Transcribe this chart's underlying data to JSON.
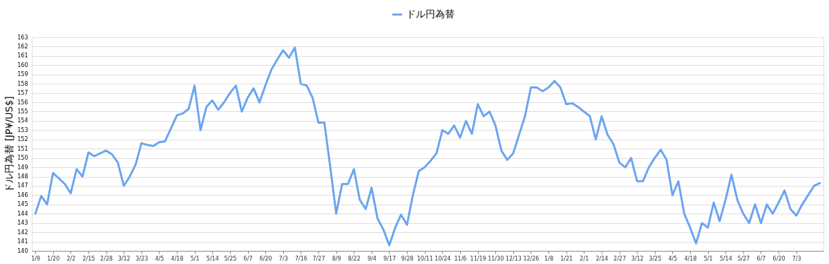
{
  "chart_data": {
    "type": "line",
    "ylabel": "ドル円為替 [JP¥/US$]",
    "categories": [
      "1/9",
      null,
      null,
      "1/20",
      null,
      null,
      "2/2",
      null,
      null,
      "2/15",
      null,
      null,
      "2/28",
      null,
      null,
      "3/12",
      null,
      null,
      "3/23",
      null,
      null,
      "4/5",
      null,
      null,
      "4/18",
      null,
      null,
      "5/1",
      null,
      null,
      "5/14",
      null,
      null,
      "5/25",
      null,
      null,
      "6/7",
      null,
      null,
      "6/20",
      null,
      null,
      "7/3",
      null,
      null,
      "7/16",
      null,
      null,
      "7/27",
      null,
      null,
      "8/9",
      null,
      null,
      "8/22",
      null,
      null,
      "9/4",
      null,
      null,
      "9/17",
      null,
      null,
      "9/28",
      null,
      null,
      "10/11",
      null,
      null,
      "10/24",
      null,
      null,
      "11/6",
      null,
      null,
      "11/19",
      null,
      null,
      "11/30",
      null,
      null,
      "12/13",
      null,
      null,
      "12/26",
      null,
      null,
      "1/8",
      null,
      null,
      "1/21",
      null,
      null,
      "2/1",
      null,
      null,
      "2/14",
      null,
      null,
      "2/27",
      null,
      null,
      "3/12",
      null,
      null,
      "3/25",
      null,
      null,
      "4/5",
      null,
      null,
      "4/18",
      null,
      null,
      "5/1",
      null,
      null,
      "5/14",
      null,
      null,
      "5/27",
      null,
      null,
      "6/7",
      null,
      null,
      "6/20",
      null,
      null,
      "7/3",
      null,
      null,
      null,
      null
    ],
    "series": [
      {
        "name": "ドル円為替",
        "color": "#6aa5f0",
        "values": [
          144.0,
          145.9,
          145.0,
          148.4,
          147.8,
          147.2,
          146.2,
          148.8,
          148.0,
          150.6,
          150.2,
          150.5,
          150.8,
          150.4,
          149.5,
          147.0,
          148.0,
          149.3,
          151.6,
          151.4,
          151.3,
          151.7,
          151.8,
          153.2,
          154.6,
          154.8,
          155.3,
          157.8,
          153.0,
          155.5,
          156.2,
          155.2,
          156.0,
          157.0,
          157.8,
          155.0,
          156.5,
          157.5,
          156.0,
          157.8,
          159.5,
          160.6,
          161.6,
          160.8,
          161.9,
          158.0,
          157.8,
          156.5,
          153.8,
          153.8,
          149.0,
          144.0,
          147.2,
          147.2,
          148.8,
          145.5,
          144.5,
          146.8,
          143.5,
          142.3,
          140.6,
          142.5,
          143.9,
          142.8,
          146.0,
          148.6,
          149.0,
          149.7,
          150.5,
          153.0,
          152.6,
          153.5,
          152.2,
          154.0,
          152.6,
          155.8,
          154.5,
          155.0,
          153.5,
          150.8,
          149.8,
          150.5,
          152.5,
          154.5,
          157.6,
          157.6,
          157.2,
          157.6,
          158.3,
          157.6,
          155.8,
          155.9,
          155.5,
          155.0,
          154.5,
          152.0,
          154.5,
          152.5,
          151.5,
          149.5,
          149.0,
          150.0,
          147.5,
          147.5,
          149.0,
          150.0,
          150.9,
          149.8,
          146.0,
          147.5,
          144.0,
          142.5,
          140.8,
          143.0,
          142.5,
          145.2,
          143.2,
          145.5,
          148.2,
          145.5,
          144.0,
          143.0,
          145.0,
          143.0,
          145.0,
          144.0,
          145.2,
          146.5,
          144.5,
          143.8,
          145.0,
          146.0,
          147.0,
          147.3
        ]
      }
    ],
    "ylim": [
      140,
      163
    ],
    "yticks": [
      140,
      141,
      142,
      143,
      144,
      145,
      146,
      147,
      148,
      149,
      150,
      151,
      152,
      153,
      154,
      155,
      156,
      157,
      158,
      159,
      160,
      161,
      162,
      163
    ],
    "grid": "y",
    "legend": "top",
    "marker": "none",
    "line_style": "solid"
  }
}
